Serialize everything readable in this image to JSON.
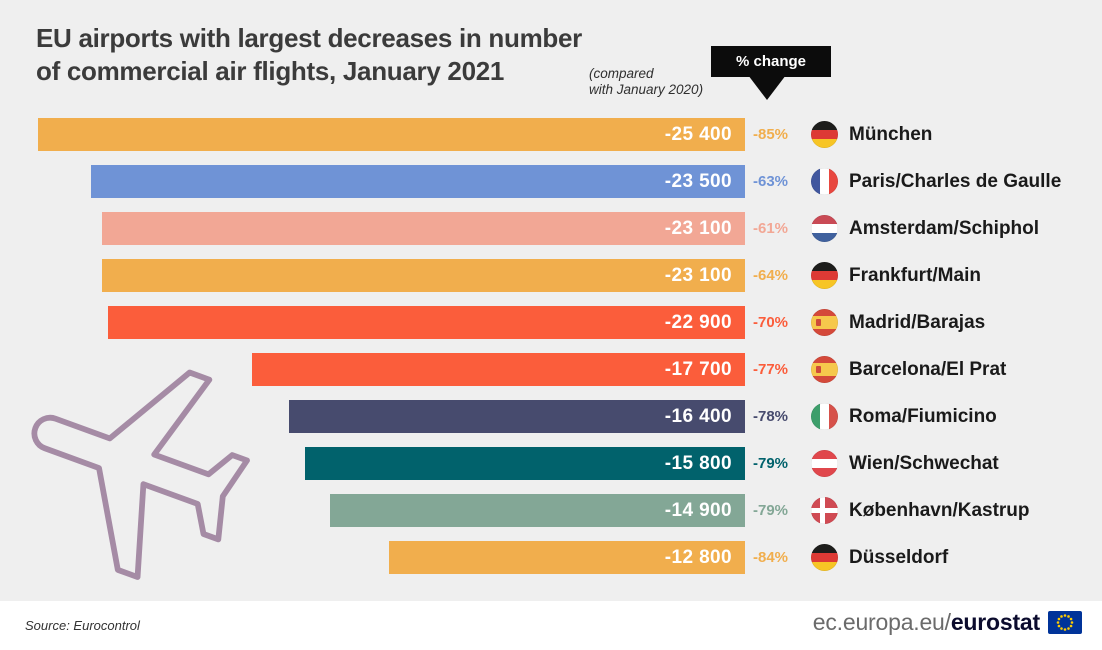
{
  "header": {
    "title_line1": "EU airports with largest decreases in number",
    "title_line2": "of commercial air flights, January 2021",
    "subtitle_line1": "(compared",
    "subtitle_line2": "with January 2020)",
    "callout_label": "% change"
  },
  "chart_data": {
    "type": "bar",
    "orientation": "horizontal",
    "title": "EU airports with largest decreases in number of commercial air flights, January 2021",
    "subtitle": "(compared with January 2020)",
    "value_annotation": "% change",
    "xlim": [
      0,
      25400
    ],
    "max_value": 25400,
    "categories": [
      "München",
      "Paris/Charles de Gaulle",
      "Amsterdam/Schiphol",
      "Frankfurt/Main",
      "Madrid/Barajas",
      "Barcelona/El Prat",
      "Roma/Fiumicino",
      "Wien/Schwechat",
      "København/Kastrup",
      "Düsseldorf"
    ],
    "values": [
      -25400,
      -23500,
      -23100,
      -23100,
      -22900,
      -17700,
      -16400,
      -15800,
      -14900,
      -12800
    ],
    "value_labels": [
      "-25 400",
      "-23 500",
      "-23 100",
      "-23 100",
      "-22 900",
      "-17 700",
      "-16 400",
      "-15 800",
      "-14 900",
      "-12 800"
    ],
    "pct_change": [
      -85,
      -63,
      -61,
      -64,
      -70,
      -77,
      -78,
      -79,
      -79,
      -84
    ],
    "pct_labels": [
      "-85%",
      "-63%",
      "-61%",
      "-64%",
      "-70%",
      "-77%",
      "-78%",
      "-79%",
      "-79%",
      "-84%"
    ],
    "bar_colors": [
      "#f1ae4d",
      "#6f93d6",
      "#f2a795",
      "#f1ae4d",
      "#fb5d3b",
      "#fb5d3b",
      "#474b6e",
      "#01626c",
      "#83a796",
      "#f1ae4d"
    ],
    "countries": [
      "germany",
      "france",
      "netherlands",
      "germany",
      "spain",
      "spain",
      "italy",
      "austria",
      "denmark",
      "germany"
    ]
  },
  "colors": {
    "background": "#efefef",
    "callout_bg": "#0c0c0c",
    "plane_outline": "#a58ba5",
    "eu_blue": "#003399",
    "star_yellow": "#ffcc00"
  },
  "footer": {
    "source": "Source: Eurocontrol",
    "brand_prefix": "ec.europa.eu/",
    "brand_bold": "eurostat"
  }
}
